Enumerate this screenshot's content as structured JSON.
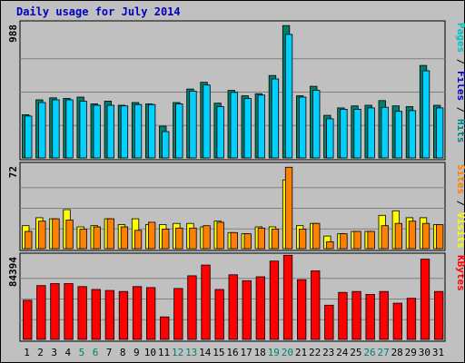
{
  "chart_data": {
    "type": "bar",
    "title": "Daily usage for July 2014",
    "categories": [
      "1",
      "2",
      "3",
      "4",
      "5",
      "6",
      "7",
      "8",
      "9",
      "10",
      "11",
      "12",
      "13",
      "14",
      "15",
      "16",
      "17",
      "18",
      "19",
      "20",
      "21",
      "22",
      "23",
      "24",
      "25",
      "26",
      "27",
      "28",
      "29",
      "30",
      "31"
    ],
    "weekend_days": [
      "5",
      "6",
      "12",
      "13",
      "19",
      "20",
      "26",
      "27"
    ],
    "panels": [
      {
        "name": "pages-files-hits",
        "max_label": "988",
        "ymax": 988,
        "label_parts": [
          {
            "text": "Pages",
            "color": "#00c0c0"
          },
          {
            "text": " / ",
            "color": "#000000"
          },
          {
            "text": "Files",
            "color": "#0000c0"
          },
          {
            "text": " / ",
            "color": "#000000"
          },
          {
            "text": "Hits",
            "color": "#008080"
          }
        ],
        "series": [
          {
            "name": "Hits",
            "color": "#00806b",
            "values": [
              320,
              430,
              445,
              440,
              450,
              400,
              420,
              390,
              410,
              400,
              235,
              410,
              510,
              560,
              405,
              500,
              460,
              475,
              610,
              980,
              460,
              530,
              315,
              370,
              385,
              390,
              425,
              385,
              380,
              685,
              390
            ]
          },
          {
            "name": "Files",
            "color": "#00d0ff",
            "values": [
              310,
              410,
              430,
              430,
              420,
              390,
              390,
              385,
              395,
              395,
              195,
              400,
              495,
              540,
              380,
              485,
              440,
              465,
              585,
              915,
              450,
              500,
              290,
              360,
              360,
              370,
              375,
              345,
              350,
              645,
              370
            ]
          }
        ]
      },
      {
        "name": "sites-visits",
        "max_label": "72",
        "ymax": 72,
        "label_parts": [
          {
            "text": "Sites",
            "color": "#ff8000"
          },
          {
            "text": " / ",
            "color": "#000000"
          },
          {
            "text": "Visits",
            "color": "#ffff00"
          }
        ],
        "series": [
          {
            "name": "Visits",
            "color": "#ffff00",
            "values": [
              20,
              27,
              26,
              34,
              19,
              20,
              26,
              21,
              26,
              21,
              21,
              22,
              22,
              19,
              24,
              14,
              13,
              19,
              19,
              60,
              20,
              22,
              11,
              13,
              15,
              15,
              29,
              33,
              27,
              27,
              21
            ]
          },
          {
            "name": "Sites",
            "color": "#ff8000",
            "values": [
              15,
              24,
              26,
              25,
              17,
              19,
              26,
              19,
              16,
              23,
              17,
              18,
              18,
              20,
              23,
              14,
              13,
              18,
              17,
              71,
              17,
              22,
              6,
              13,
              15,
              15,
              20,
              22,
              24,
              22,
              21
            ]
          }
        ]
      },
      {
        "name": "kbytes",
        "max_label": "84394",
        "ymax": 84394,
        "label_parts": [
          {
            "text": "KBytes",
            "color": "#ff0000"
          }
        ],
        "series": [
          {
            "name": "KBytes",
            "color": "#ff0000",
            "values": [
              40000,
              55000,
              57000,
              57000,
              54000,
              51000,
              50000,
              49000,
              54000,
              53000,
              23000,
              52000,
              65000,
              76000,
              51000,
              66000,
              60000,
              64000,
              80000,
              86000,
              61000,
              70000,
              35000,
              48000,
              49000,
              46000,
              49000,
              37000,
              42000,
              82000,
              49000
            ]
          }
        ]
      }
    ]
  }
}
